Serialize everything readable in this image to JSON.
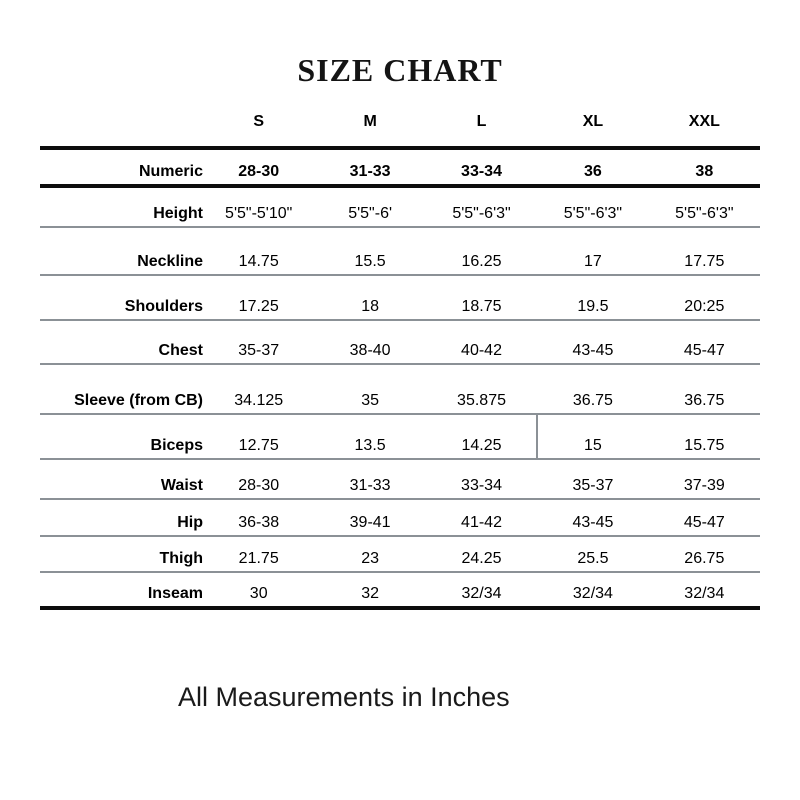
{
  "title": "SIZE CHART",
  "footer_note": "All Measurements in Inches",
  "colors": {
    "background": "#ffffff",
    "text": "#000000",
    "thick_rule": "#0d0d0d",
    "thin_rule": "#8b9196"
  },
  "table": {
    "size_headers": [
      "S",
      "M",
      "L",
      "XL",
      "XXL"
    ],
    "rows": [
      {
        "label": "Numeric",
        "values": [
          "28-30",
          "31-33",
          "33-34",
          "36",
          "38"
        ]
      },
      {
        "label": "Height",
        "values": [
          "5'5\"-5'10\"",
          "5'5\"-6'",
          "5'5\"-6'3\"",
          "5'5\"-6'3\"",
          "5'5\"-6'3\""
        ]
      },
      {
        "label": "Neckline",
        "values": [
          "14.75",
          "15.5",
          "16.25",
          "17",
          "17.75"
        ]
      },
      {
        "label": "Shoulders",
        "values": [
          "17.25",
          "18",
          "18.75",
          "19.5",
          "20:25"
        ]
      },
      {
        "label": "Chest",
        "values": [
          "35-37",
          "38-40",
          "40-42",
          "43-45",
          "45-47"
        ]
      },
      {
        "label": "Sleeve (from CB)",
        "values": [
          "34.125",
          "35",
          "35.875",
          "36.75",
          "36.75"
        ]
      },
      {
        "label": "Biceps",
        "values": [
          "12.75",
          "13.5",
          "14.25",
          "15",
          "15.75"
        ]
      },
      {
        "label": "Waist",
        "values": [
          "28-30",
          "31-33",
          "33-34",
          "35-37",
          "37-39"
        ]
      },
      {
        "label": "Hip",
        "values": [
          "36-38",
          "39-41",
          "41-42",
          "43-45",
          "45-47"
        ]
      },
      {
        "label": "Thigh",
        "values": [
          "21.75",
          "23",
          "24.25",
          "25.5",
          "26.75"
        ]
      },
      {
        "label": "Inseam",
        "values": [
          "30",
          "32",
          "32/34",
          "32/34",
          "32/34"
        ]
      }
    ]
  }
}
